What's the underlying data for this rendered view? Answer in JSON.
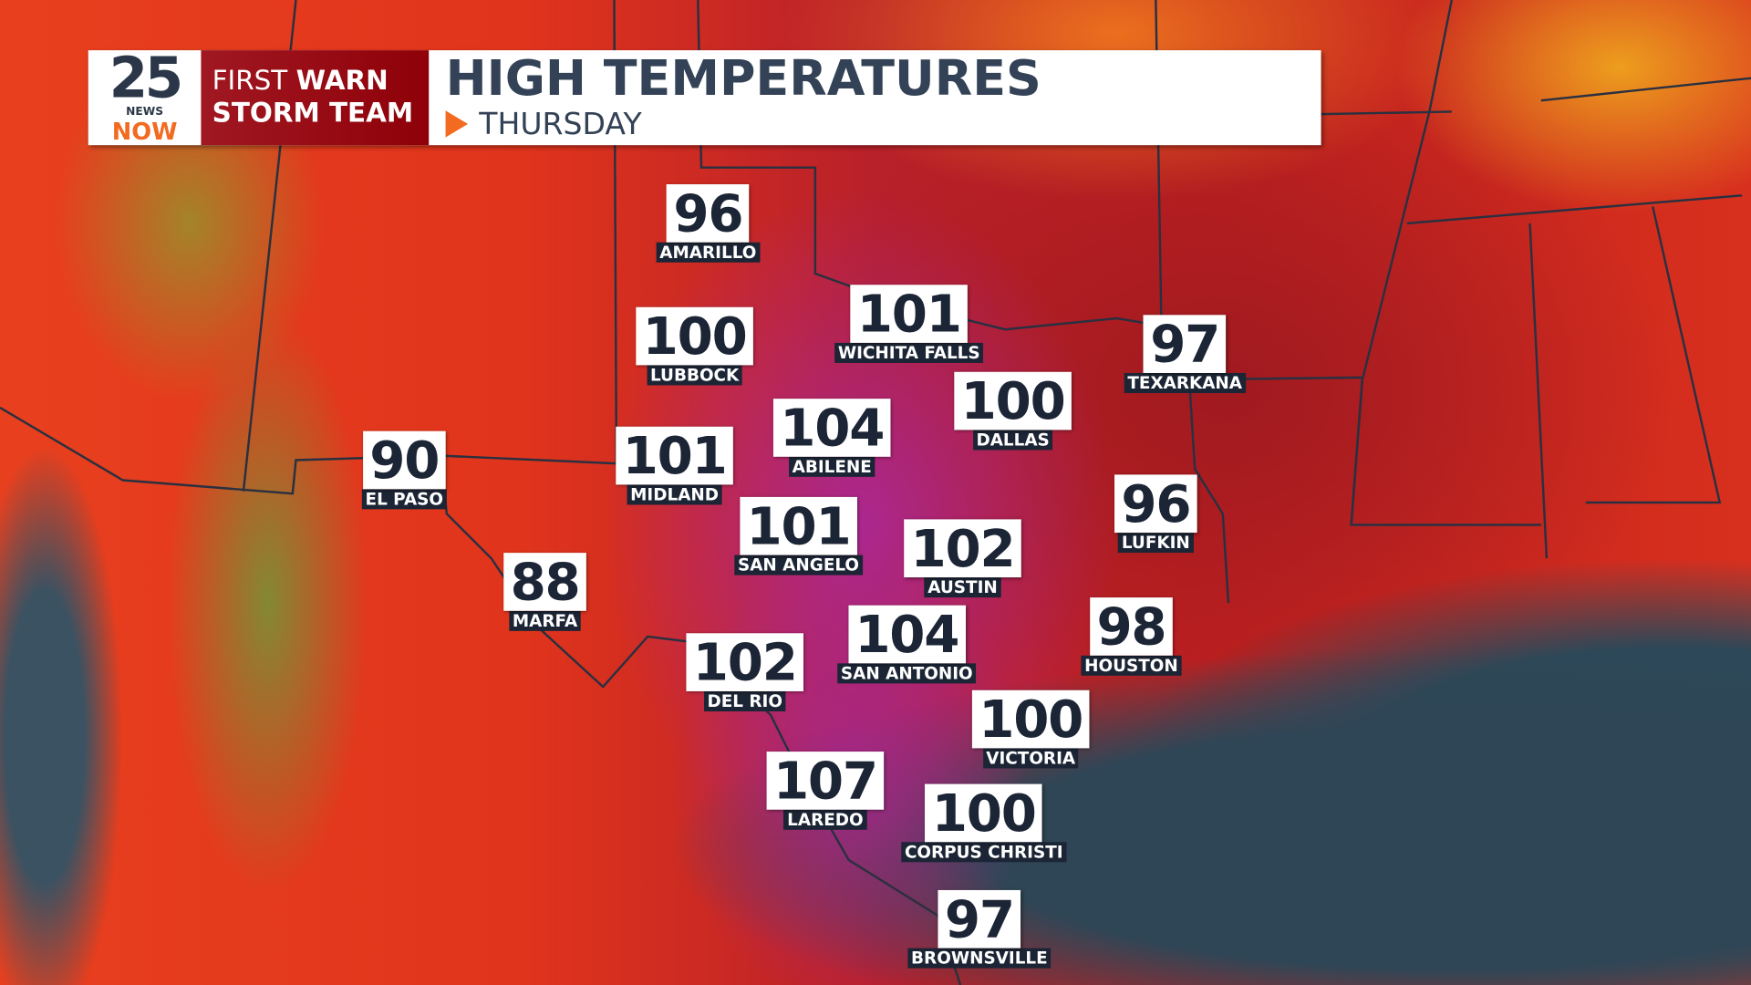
{
  "header": {
    "logo": {
      "number": "25",
      "news": "NEWS",
      "now": "NOW"
    },
    "brand": {
      "line1_a": "FIRST ",
      "line1_b": "WARN",
      "line2": "STORM TEAM"
    },
    "title": "HIGH TEMPERATURES",
    "subtitle": "THURSDAY"
  },
  "colors": {
    "brand_red": "#8f0008",
    "navy": "#1c2535",
    "accent_orange": "#f26b21"
  },
  "cities": [
    {
      "name": "AMARILLO",
      "temp": "96"
    },
    {
      "name": "LUBBOCK",
      "temp": "100"
    },
    {
      "name": "WICHITA FALLS",
      "temp": "101"
    },
    {
      "name": "TEXARKANA",
      "temp": "97"
    },
    {
      "name": "DALLAS",
      "temp": "100"
    },
    {
      "name": "ABILENE",
      "temp": "104"
    },
    {
      "name": "MIDLAND",
      "temp": "101"
    },
    {
      "name": "EL PASO",
      "temp": "90"
    },
    {
      "name": "SAN ANGELO",
      "temp": "101"
    },
    {
      "name": "AUSTIN",
      "temp": "102"
    },
    {
      "name": "LUFKIN",
      "temp": "96"
    },
    {
      "name": "MARFA",
      "temp": "88"
    },
    {
      "name": "HOUSTON",
      "temp": "98"
    },
    {
      "name": "SAN ANTONIO",
      "temp": "104"
    },
    {
      "name": "DEL RIO",
      "temp": "102"
    },
    {
      "name": "VICTORIA",
      "temp": "100"
    },
    {
      "name": "LAREDO",
      "temp": "107"
    },
    {
      "name": "CORPUS CHRISTI",
      "temp": "100"
    },
    {
      "name": "BROWNSVILLE",
      "temp": "97"
    }
  ]
}
